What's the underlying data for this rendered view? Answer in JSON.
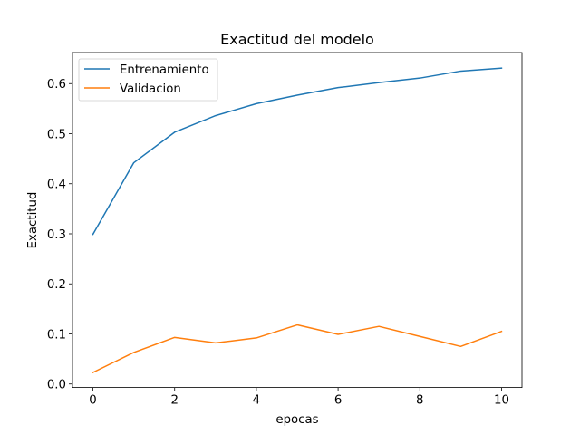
{
  "chart_data": {
    "type": "line",
    "title": "Exactitud del modelo",
    "xlabel": "epocas",
    "ylabel": "Exactitud",
    "x": [
      0,
      1,
      2,
      3,
      4,
      5,
      6,
      7,
      8,
      9,
      10
    ],
    "xlim": [
      -0.5,
      10.5
    ],
    "ylim": [
      -0.007,
      0.662
    ],
    "xticks": [
      0,
      2,
      4,
      6,
      8,
      10
    ],
    "yticks": [
      0.0,
      0.1,
      0.2,
      0.3,
      0.4,
      0.5,
      0.6
    ],
    "grid": false,
    "legend_position": "upper-left",
    "series": [
      {
        "name": "Entrenamiento",
        "color": "#1f77b4",
        "values": [
          0.299,
          0.442,
          0.503,
          0.536,
          0.56,
          0.577,
          0.592,
          0.602,
          0.611,
          0.625,
          0.631
        ]
      },
      {
        "name": "Validacion",
        "color": "#ff7f0e",
        "values": [
          0.023,
          0.063,
          0.093,
          0.082,
          0.092,
          0.118,
          0.099,
          0.115,
          0.095,
          0.075,
          0.105
        ]
      }
    ]
  }
}
